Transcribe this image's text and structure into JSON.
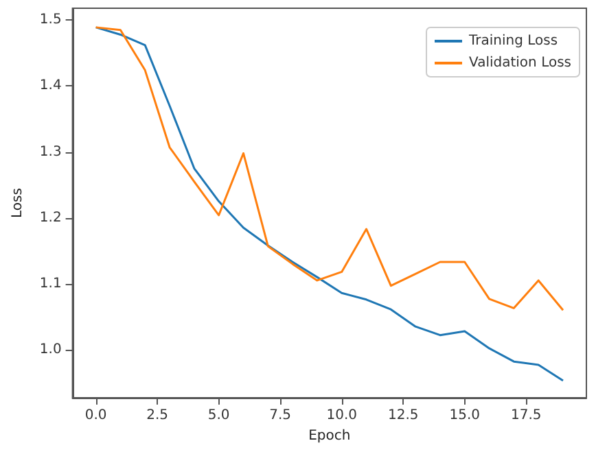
{
  "chart_data": {
    "type": "line",
    "xlabel": "Epoch",
    "ylabel": "Loss",
    "x": [
      0,
      1,
      2,
      3,
      4,
      5,
      6,
      7,
      8,
      9,
      10,
      11,
      12,
      13,
      14,
      15,
      16,
      17,
      18,
      19
    ],
    "series": [
      {
        "name": "Training Loss",
        "color": "#1f77b4",
        "values": [
          1.489,
          1.478,
          1.462,
          1.37,
          1.275,
          1.225,
          1.185,
          1.158,
          1.133,
          1.11,
          1.086,
          1.076,
          1.061,
          1.035,
          1.022,
          1.028,
          1.002,
          0.982,
          0.977,
          0.953
        ]
      },
      {
        "name": "Validation Loss",
        "color": "#ff7f0e",
        "values": [
          1.489,
          1.485,
          1.424,
          1.307,
          1.255,
          1.204,
          1.298,
          1.157,
          1.13,
          1.105,
          1.118,
          1.183,
          1.097,
          1.115,
          1.133,
          1.133,
          1.077,
          1.063,
          1.105,
          1.06
        ]
      }
    ],
    "xlim": [
      -0.95,
      19.95
    ],
    "xticks": [
      {
        "value": 0,
        "label": "0.0"
      },
      {
        "value": 2.5,
        "label": "2.5"
      },
      {
        "value": 5,
        "label": "5.0"
      },
      {
        "value": 7.5,
        "label": "7.5"
      },
      {
        "value": 10,
        "label": "10.0"
      },
      {
        "value": 12.5,
        "label": "12.5"
      },
      {
        "value": 15,
        "label": "15.0"
      },
      {
        "value": 17.5,
        "label": "17.5"
      }
    ],
    "ylim": [
      0.927,
      1.518
    ],
    "yticks": [
      {
        "value": 1.0,
        "label": "1.0"
      },
      {
        "value": 1.1,
        "label": "1.1"
      },
      {
        "value": 1.2,
        "label": "1.2"
      },
      {
        "value": 1.3,
        "label": "1.3"
      },
      {
        "value": 1.4,
        "label": "1.4"
      },
      {
        "value": 1.5,
        "label": "1.5"
      }
    ],
    "legend": "top right",
    "marker": "none",
    "line_style": "solid",
    "grid": false
  }
}
